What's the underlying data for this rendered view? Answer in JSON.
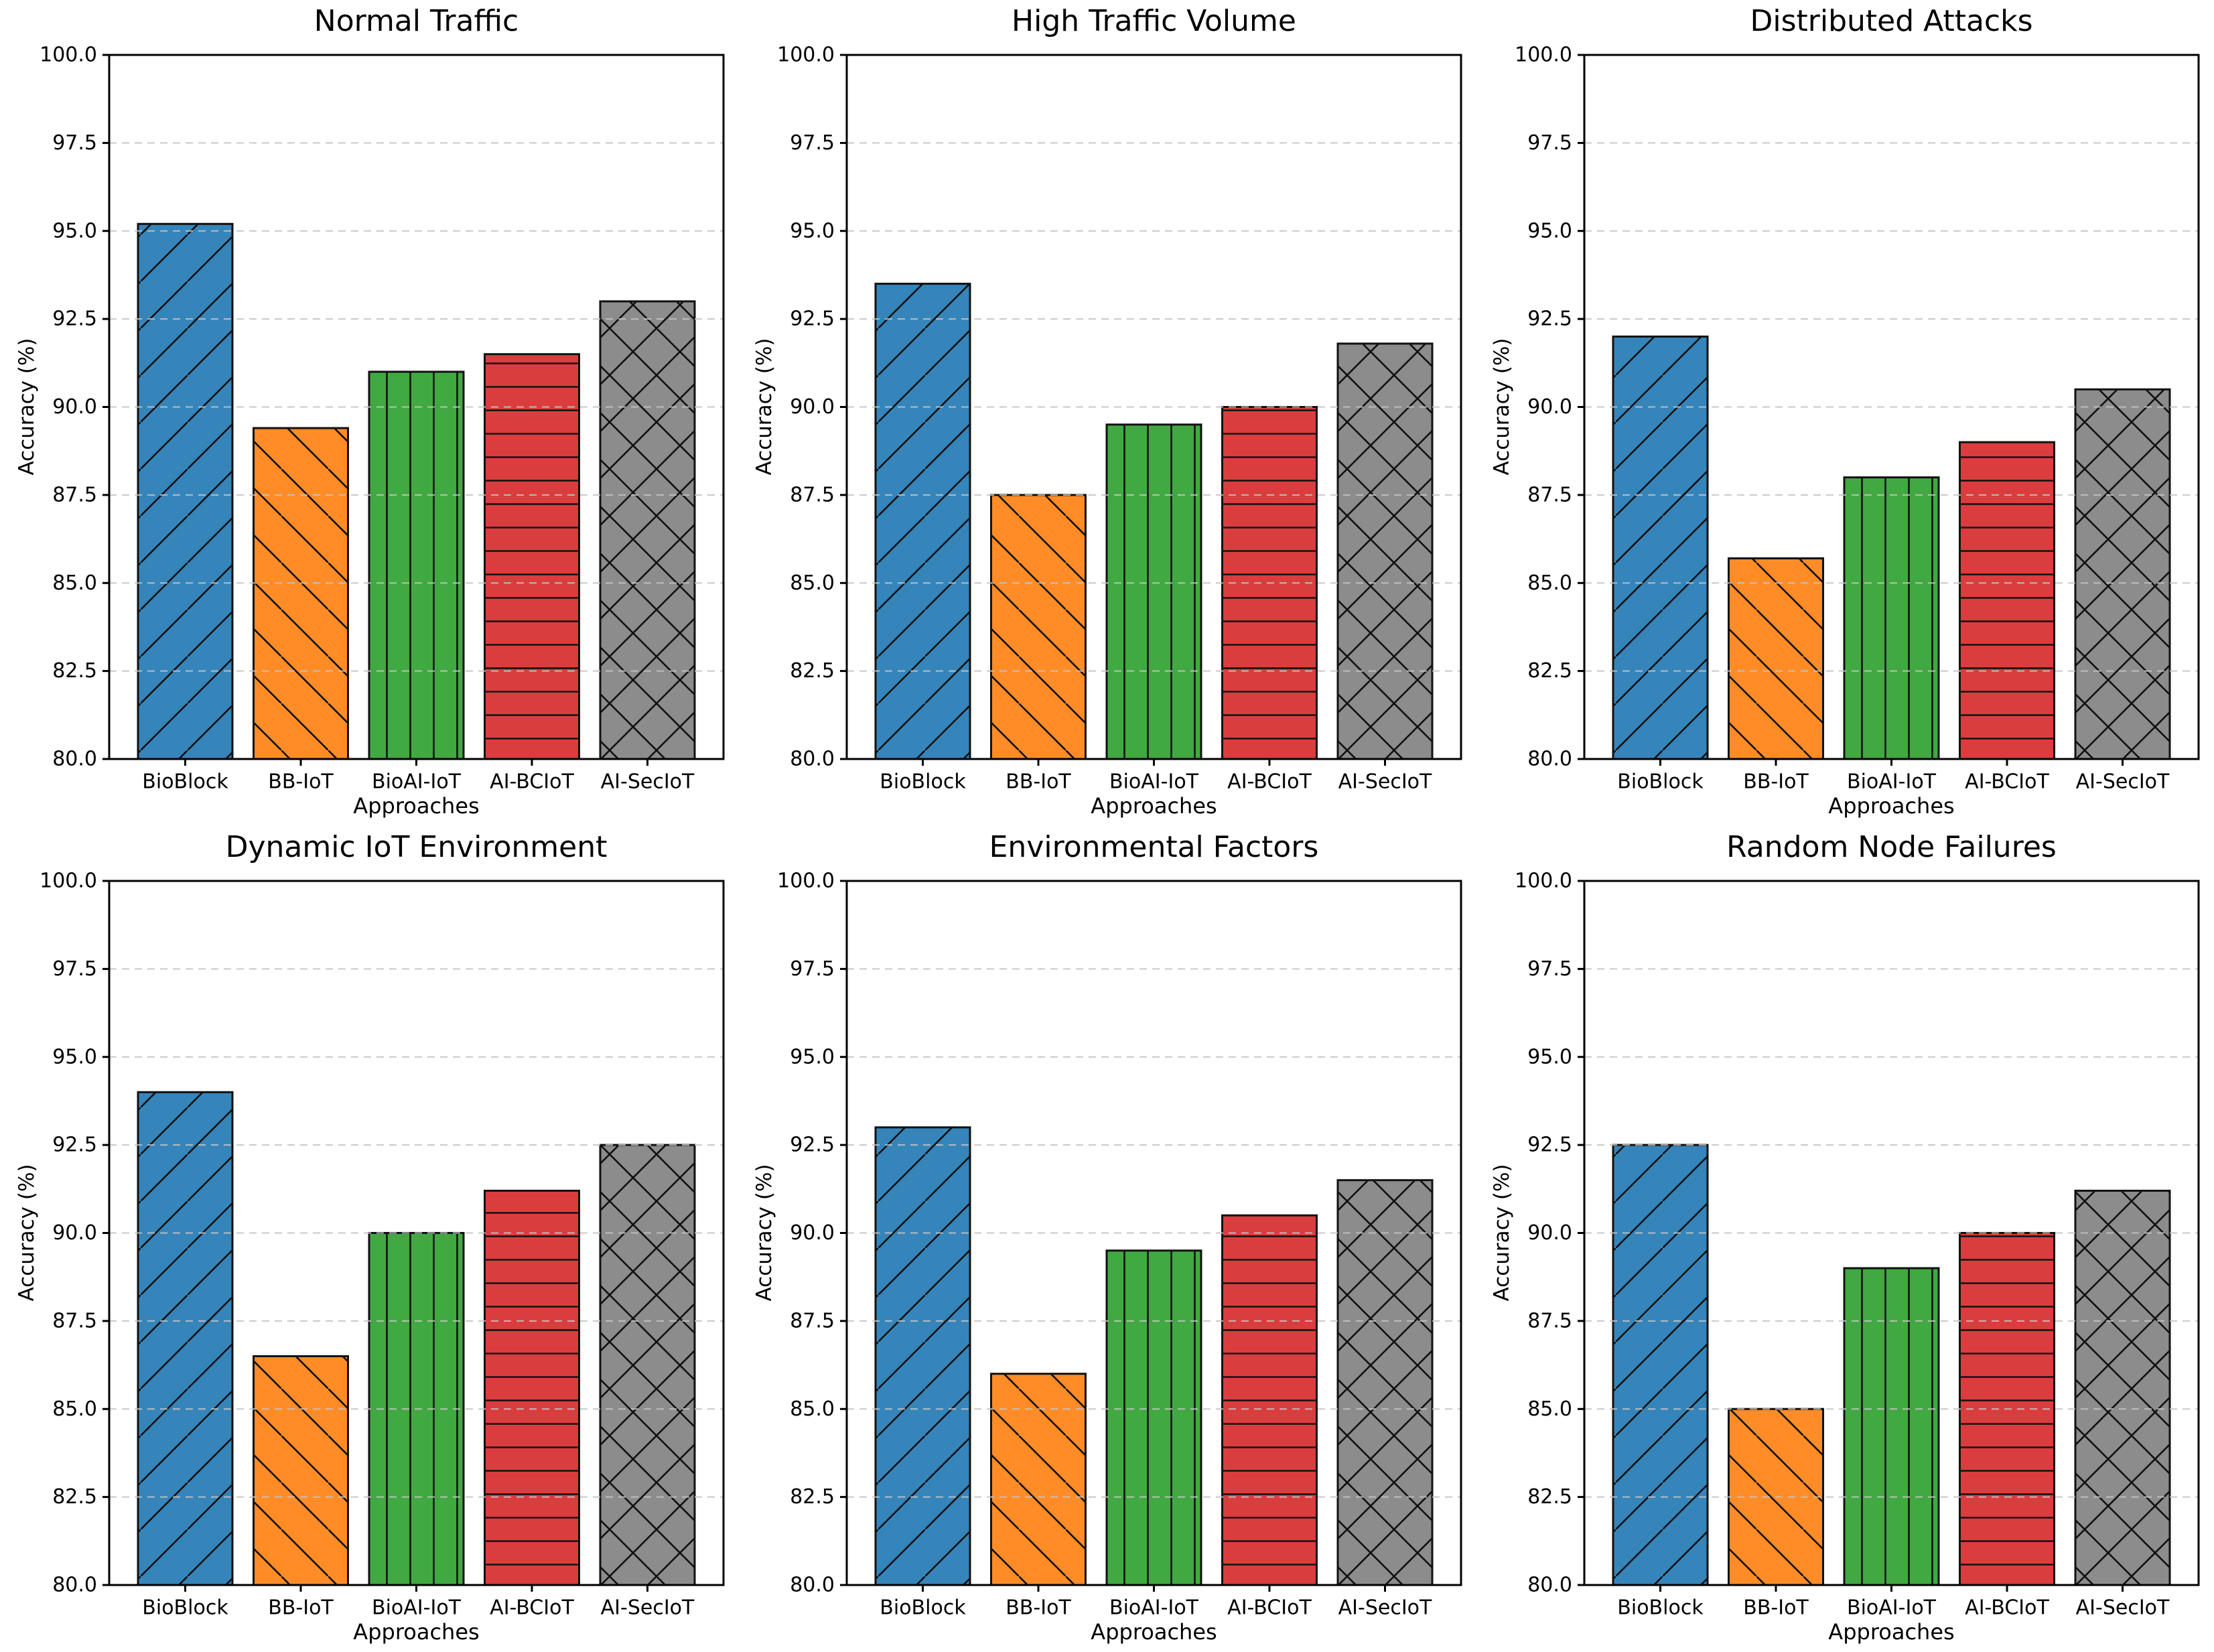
{
  "figure": {
    "background": "#ffffff",
    "grid_color": "#c3c3c3",
    "edge_color": "#111111",
    "spine_color": "#000000",
    "approaches": [
      "BioBlock",
      "BB-IoT",
      "BioAI-IoT",
      "AI-BCIoT",
      "AI-SecIoT"
    ],
    "bar_styles": [
      {
        "name": "BioBlock",
        "color": "#3585bb",
        "hatch": "/"
      },
      {
        "name": "BB-IoT",
        "color": "#ff8c26",
        "hatch": "\\"
      },
      {
        "name": "BioAI-IoT",
        "color": "#41a941",
        "hatch": "|"
      },
      {
        "name": "AI-BCIoT",
        "color": "#da3d3e",
        "hatch": "-"
      },
      {
        "name": "AI-SecIoT",
        "color": "#8c8c8c",
        "hatch": "x"
      }
    ]
  },
  "chart_data": [
    {
      "type": "bar",
      "title": "Normal Traffic",
      "xlabel": "Approaches",
      "ylabel": "Accuracy (%)",
      "categories": [
        "BioBlock",
        "BB-IoT",
        "BioAI-IoT",
        "AI-BCIoT",
        "AI-SecIoT"
      ],
      "values": [
        95.2,
        89.4,
        91.0,
        91.5,
        93.0
      ],
      "ylim": [
        80.0,
        100.0
      ],
      "ytick_step": 2.5,
      "grid": "horizontal-dashed",
      "legend": "none"
    },
    {
      "type": "bar",
      "title": "High Traffic Volume",
      "xlabel": "Approaches",
      "ylabel": "Accuracy (%)",
      "categories": [
        "BioBlock",
        "BB-IoT",
        "BioAI-IoT",
        "AI-BCIoT",
        "AI-SecIoT"
      ],
      "values": [
        93.5,
        87.5,
        89.5,
        90.0,
        91.8
      ],
      "ylim": [
        80.0,
        100.0
      ],
      "ytick_step": 2.5,
      "grid": "horizontal-dashed",
      "legend": "none"
    },
    {
      "type": "bar",
      "title": "Distributed Attacks",
      "xlabel": "Approaches",
      "ylabel": "Accuracy (%)",
      "categories": [
        "BioBlock",
        "BB-IoT",
        "BioAI-IoT",
        "AI-BCIoT",
        "AI-SecIoT"
      ],
      "values": [
        92.0,
        85.7,
        88.0,
        89.0,
        90.5
      ],
      "ylim": [
        80.0,
        100.0
      ],
      "ytick_step": 2.5,
      "grid": "horizontal-dashed",
      "legend": "none"
    },
    {
      "type": "bar",
      "title": "Dynamic IoT Environment",
      "xlabel": "Approaches",
      "ylabel": "Accuracy (%)",
      "categories": [
        "BioBlock",
        "BB-IoT",
        "BioAI-IoT",
        "AI-BCIoT",
        "AI-SecIoT"
      ],
      "values": [
        94.0,
        86.5,
        90.0,
        91.2,
        92.5
      ],
      "ylim": [
        80.0,
        100.0
      ],
      "ytick_step": 2.5,
      "grid": "horizontal-dashed",
      "legend": "none"
    },
    {
      "type": "bar",
      "title": "Environmental Factors",
      "xlabel": "Approaches",
      "ylabel": "Accuracy (%)",
      "categories": [
        "BioBlock",
        "BB-IoT",
        "BioAI-IoT",
        "AI-BCIoT",
        "AI-SecIoT"
      ],
      "values": [
        93.0,
        86.0,
        89.5,
        90.5,
        91.5
      ],
      "ylim": [
        80.0,
        100.0
      ],
      "ytick_step": 2.5,
      "grid": "horizontal-dashed",
      "legend": "none"
    },
    {
      "type": "bar",
      "title": "Random Node Failures",
      "xlabel": "Approaches",
      "ylabel": "Accuracy (%)",
      "categories": [
        "BioBlock",
        "BB-IoT",
        "BioAI-IoT",
        "AI-BCIoT",
        "AI-SecIoT"
      ],
      "values": [
        92.5,
        85.0,
        89.0,
        90.0,
        91.2
      ],
      "ylim": [
        80.0,
        100.0
      ],
      "ytick_step": 2.5,
      "grid": "horizontal-dashed",
      "legend": "none"
    }
  ]
}
